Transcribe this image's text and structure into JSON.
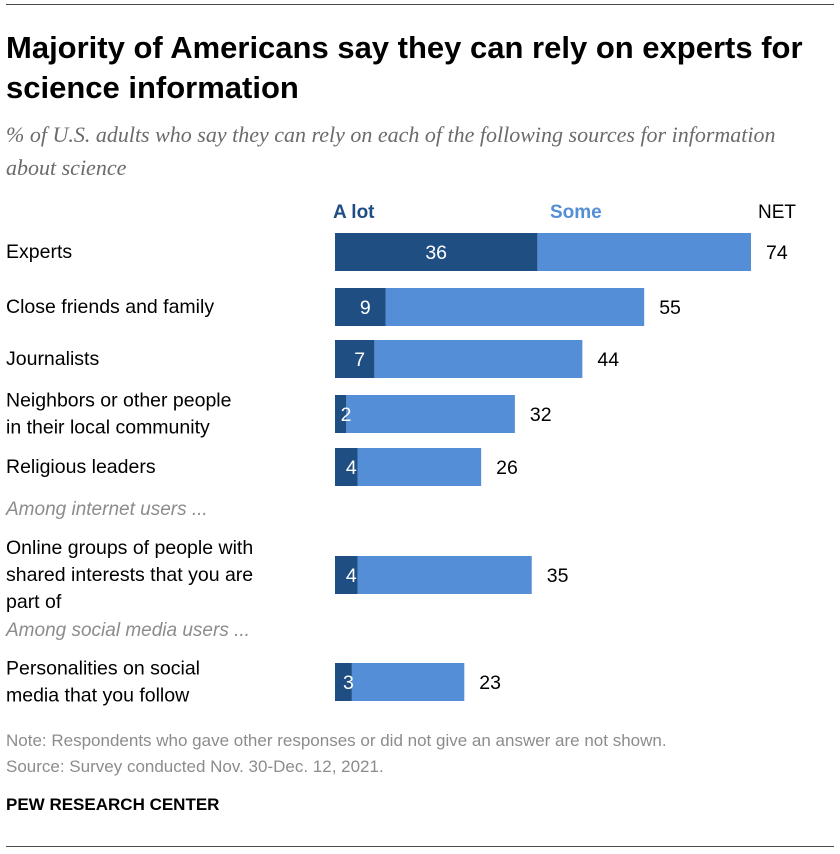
{
  "title": "Majority of Americans say they can rely on experts for science information",
  "subtitle": "% of U.S. adults who say they can rely on each of the following sources for information about science",
  "colors": {
    "a_lot": "#1f4e83",
    "some": "#548ed6",
    "group_label": "#8c8c8c"
  },
  "chart_data": {
    "type": "bar",
    "orientation": "horizontal",
    "stacked": true,
    "legend_position": "top",
    "xlim": [
      0,
      74
    ],
    "legend_labels": {
      "a_lot": "A lot",
      "some": "Some",
      "net": "NET"
    },
    "groups": [
      {
        "label": "",
        "rows": [
          {
            "category": "Experts",
            "a_lot": 36,
            "net": 74
          },
          {
            "category": "Close friends and family",
            "a_lot": 9,
            "net": 55
          },
          {
            "category": "Journalists",
            "a_lot": 7,
            "net": 44
          },
          {
            "category": "Neighbors or other people in their local community",
            "a_lot": 2,
            "net": 32
          },
          {
            "category": "Religious leaders",
            "a_lot": 4,
            "net": 26
          }
        ]
      },
      {
        "label": "Among internet users ...",
        "rows": [
          {
            "category": "Online groups of people with shared interests that you are part of",
            "a_lot": 4,
            "net": 35
          }
        ]
      },
      {
        "label": "Among social media users ...",
        "rows": [
          {
            "category": "Personalities on social media that you follow",
            "a_lot": 3,
            "net": 23
          }
        ]
      }
    ]
  },
  "note": "Note: Respondents who gave other responses or did not give an answer are not shown.",
  "source": "Source: Survey conducted Nov. 30-Dec. 12, 2021.",
  "brand": "PEW RESEARCH CENTER"
}
